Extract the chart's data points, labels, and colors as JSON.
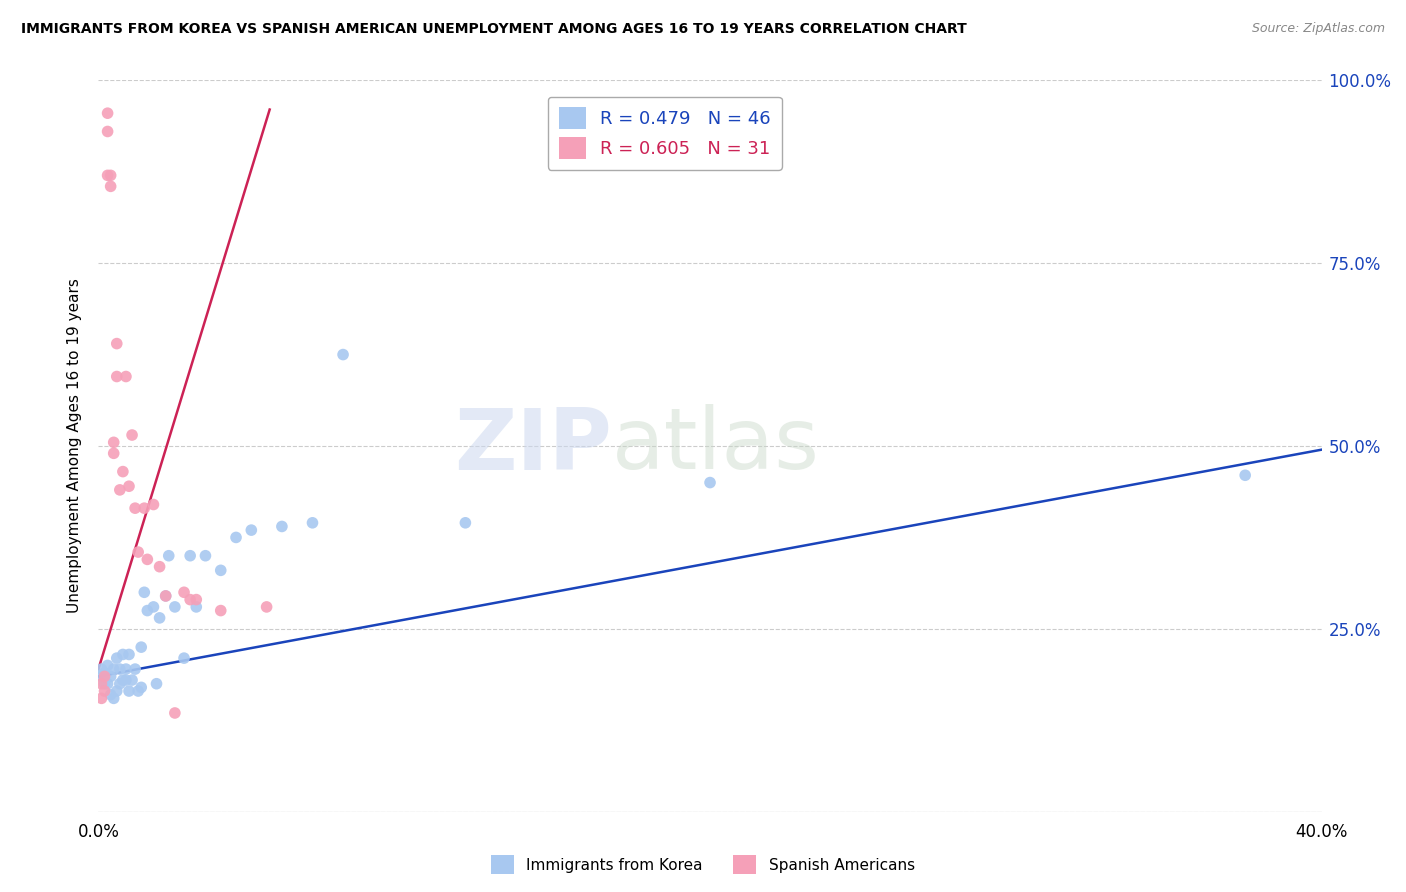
{
  "title": "IMMIGRANTS FROM KOREA VS SPANISH AMERICAN UNEMPLOYMENT AMONG AGES 16 TO 19 YEARS CORRELATION CHART",
  "source": "Source: ZipAtlas.com",
  "ylabel": "Unemployment Among Ages 16 to 19 years",
  "legend_label1": "Immigrants from Korea",
  "legend_label2": "Spanish Americans",
  "R1": 0.479,
  "N1": 46,
  "R2": 0.605,
  "N2": 31,
  "color1": "#a8c8f0",
  "color2": "#f5a0b8",
  "line_color1": "#1a44bb",
  "line_color2": "#cc2255",
  "watermark_zip": "ZIP",
  "watermark_atlas": "atlas",
  "xlim": [
    0.0,
    0.4
  ],
  "ylim": [
    0.0,
    1.0
  ],
  "korea_x": [
    0.001,
    0.001,
    0.002,
    0.002,
    0.003,
    0.003,
    0.004,
    0.004,
    0.005,
    0.005,
    0.006,
    0.006,
    0.007,
    0.007,
    0.008,
    0.008,
    0.009,
    0.009,
    0.01,
    0.01,
    0.011,
    0.012,
    0.013,
    0.014,
    0.014,
    0.015,
    0.016,
    0.018,
    0.019,
    0.02,
    0.022,
    0.023,
    0.025,
    0.028,
    0.03,
    0.032,
    0.035,
    0.04,
    0.045,
    0.05,
    0.06,
    0.07,
    0.08,
    0.12,
    0.2,
    0.375
  ],
  "korea_y": [
    0.195,
    0.185,
    0.19,
    0.175,
    0.2,
    0.175,
    0.185,
    0.16,
    0.195,
    0.155,
    0.21,
    0.165,
    0.195,
    0.175,
    0.215,
    0.18,
    0.195,
    0.18,
    0.215,
    0.165,
    0.18,
    0.195,
    0.165,
    0.225,
    0.17,
    0.3,
    0.275,
    0.28,
    0.175,
    0.265,
    0.295,
    0.35,
    0.28,
    0.21,
    0.35,
    0.28,
    0.35,
    0.33,
    0.375,
    0.385,
    0.39,
    0.395,
    0.625,
    0.395,
    0.45,
    0.46
  ],
  "spanish_x": [
    0.001,
    0.001,
    0.002,
    0.002,
    0.003,
    0.003,
    0.003,
    0.004,
    0.004,
    0.005,
    0.005,
    0.006,
    0.006,
    0.007,
    0.008,
    0.009,
    0.01,
    0.011,
    0.012,
    0.013,
    0.015,
    0.016,
    0.018,
    0.02,
    0.022,
    0.025,
    0.028,
    0.03,
    0.032,
    0.04,
    0.055
  ],
  "spanish_y": [
    0.175,
    0.155,
    0.185,
    0.165,
    0.955,
    0.93,
    0.87,
    0.87,
    0.855,
    0.49,
    0.505,
    0.595,
    0.64,
    0.44,
    0.465,
    0.595,
    0.445,
    0.515,
    0.415,
    0.355,
    0.415,
    0.345,
    0.42,
    0.335,
    0.295,
    0.135,
    0.3,
    0.29,
    0.29,
    0.275,
    0.28
  ],
  "korea_line_x": [
    0.0,
    0.4
  ],
  "korea_line_y": [
    0.185,
    0.495
  ],
  "spanish_line_x": [
    0.0,
    0.056
  ],
  "spanish_line_y": [
    0.195,
    0.96
  ]
}
